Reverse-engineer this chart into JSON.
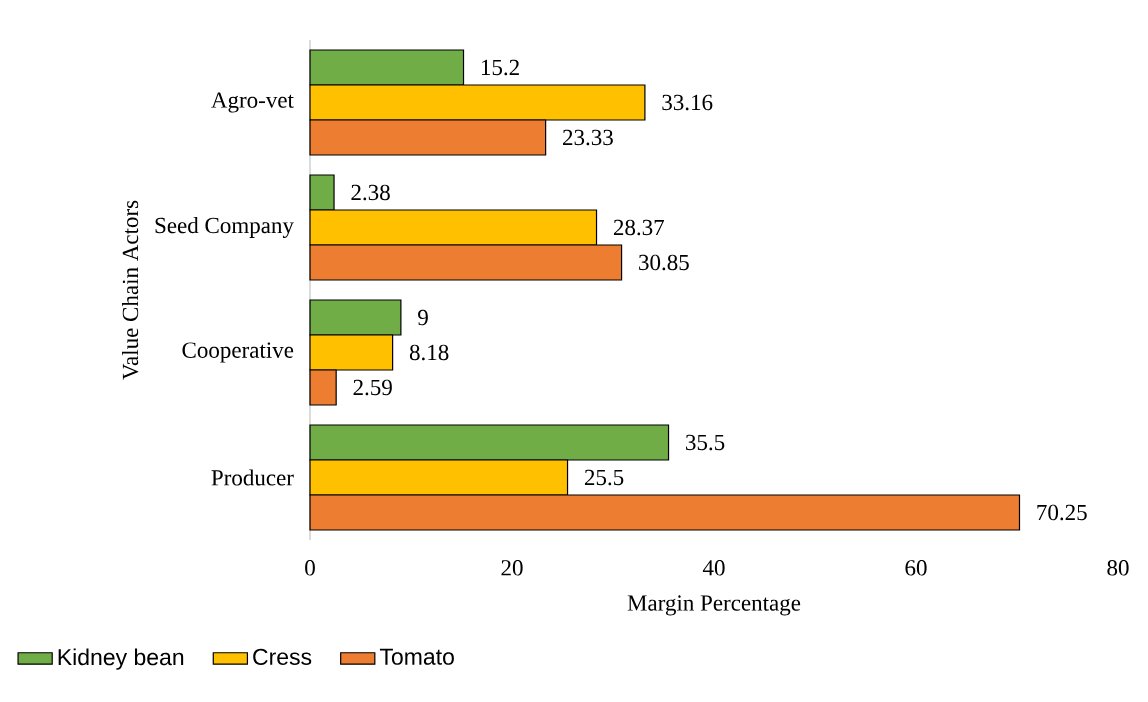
{
  "chart_data": {
    "type": "bar",
    "orientation": "horizontal",
    "xlabel": "Margin Percentage",
    "ylabel": "Value Chain Actors",
    "categories": [
      "Agro-vet",
      "Seed Company",
      "Cooperative",
      "Producer"
    ],
    "series": [
      {
        "name": "Kidney bean",
        "color": "#70ad47",
        "values": [
          15.2,
          2.38,
          9,
          35.5
        ]
      },
      {
        "name": "Cress",
        "color": "#ffc000",
        "values": [
          33.16,
          28.37,
          8.18,
          25.5
        ]
      },
      {
        "name": "Tomato",
        "color": "#ed7d31",
        "values": [
          23.33,
          30.85,
          2.59,
          70.25
        ]
      }
    ],
    "xlim": [
      0,
      80
    ],
    "xticks": [
      0,
      20,
      40,
      60,
      80
    ],
    "data_labels": true,
    "grid": false,
    "legend": "bottom"
  }
}
